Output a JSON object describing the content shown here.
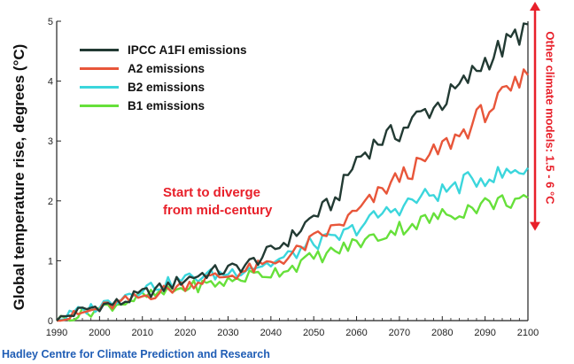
{
  "chart_data": {
    "type": "line",
    "ylabel": "Global temperature rise, degrees (°C)",
    "xlabel": "",
    "xlim": [
      1990,
      2100
    ],
    "ylim": [
      0,
      5
    ],
    "x_ticks": [
      "1990",
      "2000",
      "2010",
      "2020",
      "2030",
      "2040",
      "2050",
      "2060",
      "2070",
      "2080",
      "2090",
      "2100"
    ],
    "y_ticks": [
      "0",
      "1",
      "2",
      "3",
      "4",
      "5"
    ],
    "grid": false,
    "legend_position": "top-left",
    "x": [
      1990,
      1995,
      2000,
      2005,
      2010,
      2015,
      2020,
      2025,
      2030,
      2035,
      2040,
      2045,
      2050,
      2055,
      2060,
      2065,
      2070,
      2075,
      2080,
      2085,
      2090,
      2095,
      2100
    ],
    "series": [
      {
        "name": "IPCC A1FI emissions",
        "color": "#223a33",
        "values": [
          0.0,
          0.15,
          0.25,
          0.3,
          0.45,
          0.55,
          0.7,
          0.8,
          0.85,
          0.95,
          1.15,
          1.4,
          1.75,
          2.0,
          2.7,
          3.0,
          3.15,
          3.45,
          3.65,
          3.95,
          4.35,
          4.6,
          4.95
        ]
      },
      {
        "name": "A2 emissions",
        "color": "#e8563a",
        "values": [
          0.0,
          0.1,
          0.2,
          0.3,
          0.4,
          0.5,
          0.6,
          0.7,
          0.75,
          0.85,
          0.95,
          1.1,
          1.35,
          1.55,
          1.8,
          2.1,
          2.4,
          2.6,
          2.9,
          3.15,
          3.5,
          3.75,
          4.1
        ]
      },
      {
        "name": "B2 emissions",
        "color": "#3bd6dc",
        "values": [
          0.0,
          0.15,
          0.25,
          0.4,
          0.55,
          0.6,
          0.7,
          0.75,
          0.8,
          0.9,
          0.95,
          1.1,
          1.3,
          1.35,
          1.55,
          1.75,
          1.9,
          2.05,
          2.15,
          2.3,
          2.4,
          2.45,
          2.55
        ]
      },
      {
        "name": "B1 emissions",
        "color": "#66e03a",
        "values": [
          0.0,
          0.1,
          0.2,
          0.3,
          0.4,
          0.45,
          0.55,
          0.6,
          0.65,
          0.75,
          0.8,
          0.9,
          1.05,
          1.15,
          1.3,
          1.4,
          1.55,
          1.65,
          1.75,
          1.85,
          1.95,
          2.0,
          2.05
        ]
      }
    ],
    "annotations": [
      "Start to diverge",
      "from mid-century"
    ],
    "side_note": "Other climate models: 1.5 - 6 °C",
    "range_arrow": [
      1.5,
      6
    ]
  },
  "credit": "Hadley Centre for Climate Prediction and Research",
  "colors": {
    "annotation": "#e8202a",
    "credit": "#1f5db5",
    "axis": "#222222"
  }
}
